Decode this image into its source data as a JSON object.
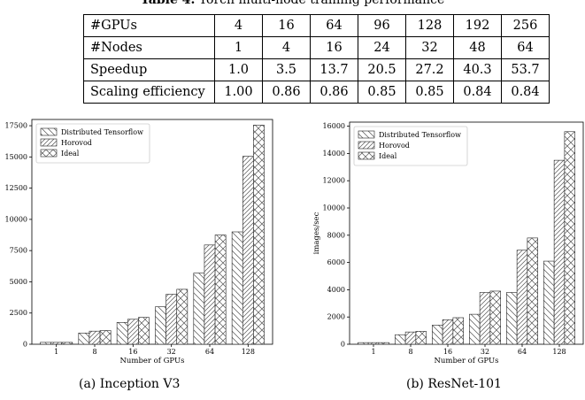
{
  "caption": {
    "label": "Table 4.",
    "text": "Torch multi-node training performance"
  },
  "table": {
    "rows": [
      {
        "header": "#GPUs",
        "cells": [
          "4",
          "16",
          "64",
          "96",
          "128",
          "192",
          "256"
        ]
      },
      {
        "header": "#Nodes",
        "cells": [
          "1",
          "4",
          "16",
          "24",
          "32",
          "48",
          "64"
        ]
      },
      {
        "header": "Speedup",
        "cells": [
          "1.0",
          "3.5",
          "13.7",
          "20.5",
          "27.2",
          "40.3",
          "53.7"
        ]
      },
      {
        "header": "Scaling efficiency",
        "cells": [
          "1.00",
          "0.86",
          "0.86",
          "0.85",
          "0.85",
          "0.84",
          "0.84"
        ]
      }
    ]
  },
  "chart_data": [
    {
      "type": "bar",
      "subcaption": "(a) Inception V3",
      "categories": [
        "1",
        "8",
        "16",
        "32",
        "64",
        "128"
      ],
      "series": [
        {
          "name": "Distributed Tensorflow",
          "pattern": "back-diagonal",
          "values": [
            150,
            900,
            1750,
            3000,
            5700,
            9000
          ]
        },
        {
          "name": "Horovod",
          "pattern": "forward-diagonal",
          "values": [
            150,
            1050,
            2000,
            4000,
            7950,
            15050
          ]
        },
        {
          "name": "Ideal",
          "pattern": "cross-hatch",
          "values": [
            150,
            1100,
            2150,
            4400,
            8750,
            17550
          ]
        }
      ],
      "xlabel": "Number of GPUs",
      "ylabel": "",
      "ylim": [
        0,
        18000
      ],
      "yticks": [
        0,
        2500,
        5000,
        7500,
        10000,
        12500,
        15000,
        17500
      ],
      "legend": "top-left",
      "grid": false
    },
    {
      "type": "bar",
      "subcaption": "(b) ResNet-101",
      "categories": [
        "1",
        "8",
        "16",
        "32",
        "64",
        "128"
      ],
      "series": [
        {
          "name": "Distributed Tensorflow",
          "pattern": "back-diagonal",
          "values": [
            120,
            700,
            1400,
            2200,
            3800,
            6100
          ]
        },
        {
          "name": "Horovod",
          "pattern": "forward-diagonal",
          "values": [
            120,
            900,
            1800,
            3800,
            6900,
            13500
          ]
        },
        {
          "name": "Ideal",
          "pattern": "cross-hatch",
          "values": [
            120,
            950,
            1950,
            3900,
            7800,
            15600
          ]
        }
      ],
      "xlabel": "Number of GPUs",
      "ylabel": "images/sec",
      "ylim": [
        0,
        16300
      ],
      "yticks": [
        0,
        2000,
        4000,
        6000,
        8000,
        10000,
        12000,
        14000,
        16000
      ],
      "legend": "top-left",
      "grid": false
    }
  ]
}
